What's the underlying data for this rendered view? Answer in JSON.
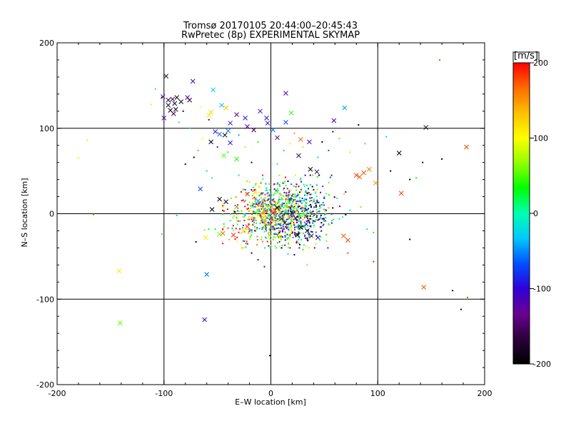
{
  "chart_data": {
    "type": "scatter",
    "title": "Tromsø 20170105 20:44:00–20:45:43",
    "subtitle": "RwPretec (8p) EXPERIMENTAL SKYMAP",
    "xlabel": "E–W location [km]",
    "ylabel": "N–S location [km]",
    "xlim": [
      -200,
      200
    ],
    "ylim": [
      -200,
      200
    ],
    "xticks": [
      -200,
      -100,
      0,
      100,
      200
    ],
    "yticks": [
      -200,
      -100,
      0,
      100,
      200
    ],
    "grid": true,
    "gridlines": {
      "x": [
        -100,
        0,
        100
      ],
      "y": [
        -100,
        0,
        100
      ]
    },
    "colorbar": {
      "label": "[m/s]",
      "min": -200,
      "max": 200,
      "ticks": [
        200,
        100,
        0,
        -100,
        -200
      ],
      "colormap": [
        "#000000",
        "#2a003a",
        "#6a0090",
        "#3000d8",
        "#0050ff",
        "#00c8ff",
        "#00ffb0",
        "#00ff00",
        "#90ff00",
        "#ffff00",
        "#ffc000",
        "#ff6a00",
        "#ff0000"
      ]
    },
    "series": [
      {
        "marker": "x",
        "points": [
          [
            -98,
            161
          ],
          [
            -96,
            133
          ],
          [
            -101,
            137
          ],
          [
            -92,
            134
          ],
          [
            -90,
            129
          ],
          [
            -88,
            136
          ],
          [
            -84,
            131
          ],
          [
            -76,
            133
          ],
          [
            -78,
            136
          ],
          [
            -73,
            155
          ],
          [
            -94,
            121
          ],
          [
            -91,
            117
          ],
          [
            -100,
            112
          ],
          [
            -96,
            127
          ],
          [
            -89,
            122
          ],
          [
            -54,
            145
          ],
          [
            -56,
            119
          ],
          [
            -58,
            115
          ],
          [
            -46,
            127
          ],
          [
            -42,
            124
          ],
          [
            -32,
            116
          ],
          [
            -40,
            97
          ],
          [
            -38,
            106
          ],
          [
            -48,
            93
          ],
          [
            -52,
            96
          ],
          [
            -43,
            92
          ],
          [
            -56,
            84
          ],
          [
            -38,
            83
          ],
          [
            -32,
            64
          ],
          [
            -44,
            68
          ],
          [
            14,
            141
          ],
          [
            19,
            118
          ],
          [
            14,
            107
          ],
          [
            -10,
            120
          ],
          [
            2,
            98
          ],
          [
            -4,
            112
          ],
          [
            -22,
            102
          ],
          [
            -16,
            98
          ],
          [
            -24,
            112
          ],
          [
            -3,
            106
          ],
          [
            6,
            89
          ],
          [
            28,
            87
          ],
          [
            36,
            84
          ],
          [
            26,
            68
          ],
          [
            37,
            52
          ],
          [
            43,
            49
          ],
          [
            69,
            124
          ],
          [
            59,
            109
          ],
          [
            -66,
            29
          ],
          [
            -55,
            5
          ],
          [
            -48,
            17
          ],
          [
            -42,
            14
          ],
          [
            -22,
            23
          ],
          [
            -32,
            8
          ],
          [
            -15,
            25
          ],
          [
            -12,
            15
          ],
          [
            -5,
            3
          ],
          [
            -7,
            -5
          ],
          [
            2,
            1
          ],
          [
            3,
            5
          ],
          [
            -2,
            9
          ],
          [
            6,
            7
          ],
          [
            10,
            -6
          ],
          [
            13,
            -11
          ],
          [
            20,
            0
          ],
          [
            23,
            -5
          ],
          [
            28,
            -16
          ],
          [
            34,
            -20
          ],
          [
            38,
            -26
          ],
          [
            44,
            -28
          ],
          [
            33,
            -12
          ],
          [
            25,
            -25
          ],
          [
            -22,
            -15
          ],
          [
            -26,
            -20
          ],
          [
            -35,
            -25
          ],
          [
            -45,
            -23
          ],
          [
            -48,
            -24
          ],
          [
            -61,
            -28
          ],
          [
            68,
            -26
          ],
          [
            72,
            -31
          ],
          [
            80,
            45
          ],
          [
            83,
            43
          ],
          [
            87,
            48
          ],
          [
            92,
            52
          ],
          [
            98,
            36
          ],
          [
            120,
            71
          ],
          [
            122,
            24
          ],
          [
            145,
            101
          ],
          [
            183,
            78
          ],
          [
            143,
            -86
          ],
          [
            -62,
            -124
          ],
          [
            -141,
            -128
          ],
          [
            -142,
            -67
          ],
          [
            -60,
            -71
          ]
        ],
        "values": [
          -200,
          -160,
          -120,
          -150,
          -185,
          -190,
          -200,
          -175,
          -115,
          -110,
          -190,
          -155,
          -120,
          -190,
          -185,
          -30,
          120,
          110,
          -40,
          130,
          -130,
          -55,
          -90,
          -60,
          -90,
          -200,
          -200,
          -90,
          40,
          50,
          -120,
          40,
          -70,
          -115,
          -55,
          -90,
          -120,
          -160,
          -90,
          -100,
          -150,
          170,
          -110,
          -170,
          -200,
          -160,
          -45,
          -110,
          -70,
          -200,
          -200,
          -190,
          190,
          160,
          120,
          -40,
          170,
          120,
          190,
          180,
          130,
          -185,
          -120,
          -190,
          -170,
          -150,
          -185,
          -200,
          -160,
          -110,
          -90,
          -200,
          180,
          110,
          190,
          170,
          60,
          110,
          170,
          180,
          180,
          170,
          175,
          160,
          150,
          -200,
          180,
          -200,
          180,
          175,
          -110,
          55,
          110,
          -60
        ]
      },
      {
        "marker": "dot",
        "points": [
          [
            -180,
            65
          ],
          [
            -172,
            86
          ],
          [
            -166,
            -1
          ],
          [
            -102,
            -24
          ],
          [
            -88,
            -2
          ],
          [
            -62,
            -19
          ],
          [
            -70,
            -33
          ],
          [
            -52,
            -18
          ],
          [
            -38,
            -8
          ],
          [
            -26,
            -32
          ],
          [
            -18,
            -46
          ],
          [
            -12,
            -54
          ],
          [
            -6,
            -62
          ],
          [
            4,
            -38
          ],
          [
            10,
            -40
          ],
          [
            16,
            -47
          ],
          [
            22,
            -48
          ],
          [
            30,
            -42
          ],
          [
            40,
            -28
          ],
          [
            46,
            -31
          ],
          [
            -30,
            45
          ],
          [
            -22,
            38
          ],
          [
            -14,
            35
          ],
          [
            -4,
            30
          ],
          [
            8,
            34
          ],
          [
            16,
            38
          ],
          [
            26,
            32
          ],
          [
            34,
            24
          ],
          [
            40,
            28
          ],
          [
            50,
            20
          ],
          [
            62,
            18
          ],
          [
            74,
            4
          ],
          [
            84,
            8
          ],
          [
            90,
            -18
          ],
          [
            96,
            -22
          ],
          [
            -80,
            58
          ],
          [
            -72,
            66
          ],
          [
            -60,
            50
          ],
          [
            -55,
            42
          ],
          [
            -64,
            88
          ],
          [
            -68,
            74
          ],
          [
            -50,
            78
          ],
          [
            -58,
            110
          ],
          [
            -66,
            125
          ],
          [
            -76,
            100
          ],
          [
            -82,
            120
          ],
          [
            -108,
            146
          ],
          [
            -112,
            128
          ],
          [
            -86,
            107
          ],
          [
            -102,
            136
          ],
          [
            -24,
            78
          ],
          [
            -18,
            60
          ],
          [
            -12,
            84
          ],
          [
            -30,
            92
          ],
          [
            -40,
            72
          ],
          [
            6,
            58
          ],
          [
            12,
            74
          ],
          [
            18,
            82
          ],
          [
            22,
            94
          ],
          [
            30,
            78
          ],
          [
            44,
            66
          ],
          [
            48,
            84
          ],
          [
            54,
            74
          ],
          [
            58,
            96
          ],
          [
            64,
            88
          ],
          [
            74,
            72
          ],
          [
            82,
            104
          ],
          [
            88,
            82
          ],
          [
            108,
            90
          ],
          [
            112,
            50
          ],
          [
            130,
            40
          ],
          [
            136,
            42
          ],
          [
            142,
            60
          ],
          [
            160,
            64
          ],
          [
            96,
            -56
          ],
          [
            72,
            -46
          ],
          [
            54,
            -12
          ],
          [
            64,
            -6
          ],
          [
            34,
            -60
          ],
          [
            24,
            -34
          ],
          [
            18,
            -26
          ],
          [
            8,
            -22
          ],
          [
            -8,
            -18
          ],
          [
            -16,
            -12
          ],
          [
            -24,
            -2
          ],
          [
            -34,
            2
          ],
          [
            -44,
            -12
          ],
          [
            -58,
            -18
          ],
          [
            -1,
            -166
          ],
          [
            130,
            -30
          ],
          [
            158,
            180
          ],
          [
            170,
            -90
          ],
          [
            178,
            -112
          ],
          [
            184,
            -98
          ]
        ],
        "values": [
          90,
          110,
          170,
          40,
          -30,
          60,
          -190,
          20,
          10,
          -40,
          -180,
          -100,
          -120,
          50,
          -200,
          -30,
          -170,
          40,
          90,
          -10,
          -10,
          70,
          40,
          -30,
          -50,
          -190,
          -120,
          -200,
          -160,
          -20,
          10,
          -20,
          60,
          -20,
          30,
          -190,
          -200,
          20,
          10,
          100,
          40,
          -90,
          -100,
          100,
          -20,
          -180,
          10,
          110,
          -10,
          -200,
          70,
          -170,
          40,
          -40,
          20,
          10,
          30,
          110,
          150,
          120,
          -30,
          -200,
          -70,
          -160,
          50,
          80,
          -200,
          20,
          -20,
          -200,
          -200,
          30,
          -200,
          -200,
          190,
          180,
          20,
          -20,
          60,
          -150,
          30,
          -190,
          -40,
          110,
          -20,
          -200,
          30,
          40,
          -200,
          -200,
          180,
          -200,
          -200,
          180
        ]
      }
    ],
    "cluster": {
      "marker": "dot",
      "center": [
        10,
        0
      ],
      "spread": [
        22,
        18
      ],
      "count": 1100,
      "value_range": [
        -200,
        200
      ]
    }
  }
}
